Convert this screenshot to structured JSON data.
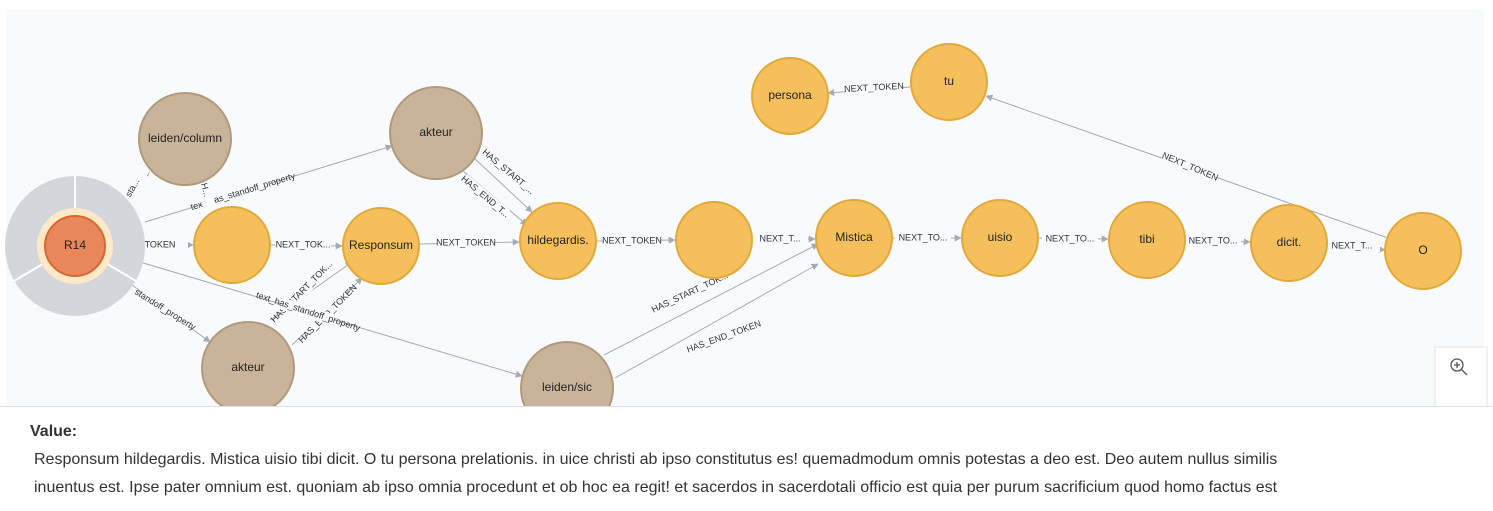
{
  "graph": {
    "nodes": [
      "R14",
      "leiden/column",
      "akteur",
      "Responsum",
      "hildegardis.",
      "Mistica",
      "uisio",
      "tibi",
      "dicit.",
      "O",
      "persona",
      "tu",
      "akteur",
      "leiden/sic"
    ],
    "edges": [
      "NEXT_TOKEN",
      "NEXT_TOKEN",
      "text_has_standoff_property",
      "HAS_START_...",
      "HAS_END_T...",
      "TOKEN",
      "NEXT_TOK...",
      "NEXT_TOKEN",
      "NEXT_TOKEN",
      "NEXT_T...",
      "NEXT_TO...",
      "NEXT_TO...",
      "NEXT_TO...",
      "NEXT_T...",
      "HAS_START_TOK...",
      "HAS_END_TOKEN",
      "text_has_standoff_property",
      "standoff_property",
      "HAS_START_TOK...",
      "HAS_END_TOKEN",
      "sta...",
      "H..."
    ]
  },
  "panel": {
    "heading": "Value:",
    "lines": [
      "Responsum hildegardis.  Mistica uisio tibi dicit. O tu persona prelationis. in uice christi ab ipso constitutus es!  quemadmodum omnis potestas a deo est. Deo autem  nullus similis",
      "inuentus est. Ipse pater omnium est.  quoniam ab ipso omnia procedunt et ob hoc ea regit!  et sacerdos in sacerdotali officio est quia per purum sacrificium quod homo factus est"
    ]
  }
}
